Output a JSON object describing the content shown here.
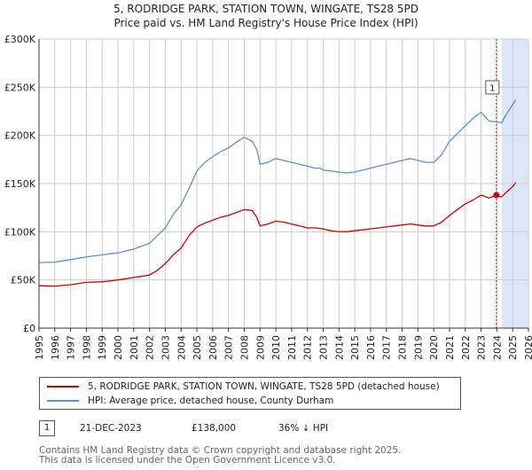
{
  "title_line1": "5, RODRIDGE PARK, STATION TOWN, WINGATE, TS28 5PD",
  "title_line2": "Price paid vs. HM Land Registry's House Price Index (HPI)",
  "colors": {
    "price_paid": "#cc0000",
    "hpi": "#5b8fd0",
    "shade": "#dde6f8",
    "marker_line": "#cc0000"
  },
  "chart_data": {
    "type": "line",
    "title": "5, RODRIDGE PARK, STATION TOWN, WINGATE, TS28 5PD — Price paid vs. HM Land Registry's House Price Index (HPI)",
    "xlim": [
      1995,
      2026
    ],
    "ylim": [
      0,
      300000
    ],
    "yticks": [
      {
        "value": 0,
        "label": "£0"
      },
      {
        "value": 50000,
        "label": "£50K"
      },
      {
        "value": 100000,
        "label": "£100K"
      },
      {
        "value": 150000,
        "label": "£150K"
      },
      {
        "value": 200000,
        "label": "£200K"
      },
      {
        "value": 250000,
        "label": "£250K"
      },
      {
        "value": 300000,
        "label": "£300K"
      }
    ],
    "xticks": [
      "1995",
      "1996",
      "1997",
      "1998",
      "1999",
      "2000",
      "2001",
      "2002",
      "2003",
      "2004",
      "2005",
      "2006",
      "2007",
      "2008",
      "2009",
      "2010",
      "2011",
      "2012",
      "2013",
      "2014",
      "2015",
      "2016",
      "2017",
      "2018",
      "2019",
      "2020",
      "2021",
      "2022",
      "2023",
      "2024",
      "2025",
      "2026"
    ],
    "grid": true,
    "forecast_shade": [
      2024.3,
      2026
    ],
    "series": [
      {
        "name": "5, RODRIDGE PARK, STATION TOWN, WINGATE, TS28 5PD (detached house)",
        "color": "#cc0000",
        "points": [
          [
            1995.0,
            44000
          ],
          [
            1996.0,
            43500
          ],
          [
            1997.0,
            45000
          ],
          [
            1998.0,
            47500
          ],
          [
            1999.0,
            48000
          ],
          [
            2000.0,
            50000
          ],
          [
            2001.0,
            52500
          ],
          [
            2002.0,
            55000
          ],
          [
            2002.5,
            60000
          ],
          [
            2003.0,
            67000
          ],
          [
            2003.5,
            76000
          ],
          [
            2004.0,
            83000
          ],
          [
            2004.5,
            96000
          ],
          [
            2005.0,
            105000
          ],
          [
            2005.5,
            109000
          ],
          [
            2006.0,
            112000
          ],
          [
            2006.5,
            115000
          ],
          [
            2007.0,
            117000
          ],
          [
            2007.5,
            120000
          ],
          [
            2008.0,
            123000
          ],
          [
            2008.5,
            122000
          ],
          [
            2008.8,
            115000
          ],
          [
            2009.0,
            106000
          ],
          [
            2009.5,
            108000
          ],
          [
            2010.0,
            111000
          ],
          [
            2010.5,
            110000
          ],
          [
            2011.0,
            108000
          ],
          [
            2011.5,
            106000
          ],
          [
            2012.0,
            104000
          ],
          [
            2012.5,
            104000
          ],
          [
            2013.0,
            103000
          ],
          [
            2013.5,
            101000
          ],
          [
            2014.0,
            100000
          ],
          [
            2014.5,
            100000
          ],
          [
            2015.0,
            101000
          ],
          [
            2015.5,
            102000
          ],
          [
            2016.0,
            103000
          ],
          [
            2016.5,
            104000
          ],
          [
            2017.0,
            105000
          ],
          [
            2017.5,
            106000
          ],
          [
            2018.0,
            107000
          ],
          [
            2018.5,
            108000
          ],
          [
            2019.0,
            107000
          ],
          [
            2019.5,
            106000
          ],
          [
            2020.0,
            106000
          ],
          [
            2020.5,
            110000
          ],
          [
            2021.0,
            117000
          ],
          [
            2021.5,
            123000
          ],
          [
            2022.0,
            129000
          ],
          [
            2022.5,
            133000
          ],
          [
            2023.0,
            138000
          ],
          [
            2023.5,
            135000
          ],
          [
            2023.97,
            138000
          ],
          [
            2024.3,
            136000
          ],
          [
            2024.6,
            141000
          ],
          [
            2025.0,
            147000
          ],
          [
            2025.2,
            151000
          ]
        ]
      },
      {
        "name": "HPI: Average price, detached house, County Durham",
        "color": "#5b8fd0",
        "points": [
          [
            1995.0,
            68000
          ],
          [
            1996.0,
            68500
          ],
          [
            1997.0,
            71000
          ],
          [
            1998.0,
            74000
          ],
          [
            1999.0,
            76000
          ],
          [
            2000.0,
            78000
          ],
          [
            2001.0,
            82000
          ],
          [
            2002.0,
            88000
          ],
          [
            2002.5,
            96000
          ],
          [
            2003.0,
            104000
          ],
          [
            2003.5,
            118000
          ],
          [
            2004.0,
            128000
          ],
          [
            2004.5,
            145000
          ],
          [
            2005.0,
            163000
          ],
          [
            2005.5,
            172000
          ],
          [
            2006.0,
            178000
          ],
          [
            2006.5,
            183000
          ],
          [
            2007.0,
            187000
          ],
          [
            2007.5,
            193000
          ],
          [
            2008.0,
            198000
          ],
          [
            2008.5,
            194000
          ],
          [
            2008.8,
            185000
          ],
          [
            2009.0,
            170000
          ],
          [
            2009.5,
            172000
          ],
          [
            2010.0,
            176000
          ],
          [
            2010.5,
            174000
          ],
          [
            2011.0,
            172000
          ],
          [
            2011.5,
            170000
          ],
          [
            2012.0,
            168000
          ],
          [
            2012.5,
            166000
          ],
          [
            2012.8,
            166000
          ],
          [
            2013.0,
            164000
          ],
          [
            2013.5,
            163000
          ],
          [
            2014.0,
            162000
          ],
          [
            2014.5,
            161000
          ],
          [
            2015.0,
            162000
          ],
          [
            2015.5,
            164000
          ],
          [
            2016.0,
            166000
          ],
          [
            2016.5,
            168000
          ],
          [
            2017.0,
            170000
          ],
          [
            2017.5,
            172000
          ],
          [
            2018.0,
            174000
          ],
          [
            2018.5,
            176000
          ],
          [
            2019.0,
            174000
          ],
          [
            2019.5,
            172000
          ],
          [
            2020.0,
            172000
          ],
          [
            2020.5,
            180000
          ],
          [
            2021.0,
            194000
          ],
          [
            2021.5,
            202000
          ],
          [
            2022.0,
            210000
          ],
          [
            2022.5,
            218000
          ],
          [
            2023.0,
            224000
          ],
          [
            2023.5,
            215000
          ],
          [
            2023.97,
            214000
          ],
          [
            2024.3,
            213000
          ],
          [
            2024.6,
            222000
          ],
          [
            2025.0,
            232000
          ],
          [
            2025.2,
            237000
          ]
        ]
      }
    ],
    "markers": [
      {
        "label": "1",
        "x": 2023.97,
        "y": 138000
      }
    ]
  },
  "legend": {
    "item1": "5, RODRIDGE PARK, STATION TOWN, WINGATE, TS28 5PD (detached house)",
    "item2": "HPI: Average price, detached house, County Durham"
  },
  "annotation": {
    "number": "1",
    "date": "21-DEC-2023",
    "price": "£138,000",
    "hpi": "36% ↓ HPI"
  },
  "footer_line1": "Contains HM Land Registry data © Crown copyright and database right 2025.",
  "footer_line2": "This data is licensed under the Open Government Licence v3.0."
}
